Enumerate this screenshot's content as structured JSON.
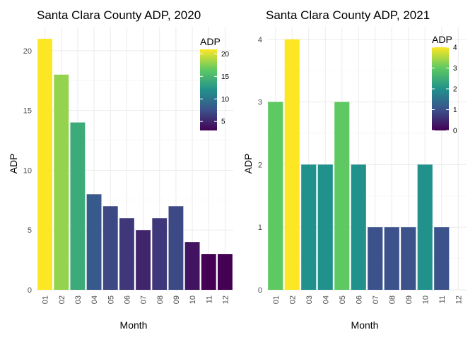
{
  "chart_data": [
    {
      "type": "bar",
      "title": "Santa Clara County ADP, 2020",
      "xlabel": "Month",
      "ylabel": "ADP",
      "categories": [
        "01",
        "02",
        "03",
        "04",
        "05",
        "06",
        "07",
        "08",
        "09",
        "10",
        "11",
        "12"
      ],
      "values": [
        21,
        18,
        14,
        8,
        7,
        6,
        5,
        6,
        7,
        4,
        3,
        3
      ],
      "ylim": [
        0,
        22
      ],
      "yticks": [
        "0",
        "5",
        "10",
        "15",
        "20"
      ],
      "legend": {
        "title": "ADP",
        "ticks": [
          "5",
          "10",
          "15",
          "20"
        ],
        "range": [
          3,
          21
        ],
        "placement": "top-right"
      },
      "colormap": "viridis",
      "grid": true
    },
    {
      "type": "bar",
      "title": "Santa Clara County ADP, 2021",
      "xlabel": "Month",
      "ylabel": "ADP",
      "categories": [
        "01",
        "02",
        "03",
        "04",
        "05",
        "06",
        "07",
        "08",
        "09",
        "10",
        "11",
        "12"
      ],
      "values": [
        3,
        4,
        2,
        2,
        3,
        2,
        1,
        1,
        1,
        2,
        1,
        0
      ],
      "ylim": [
        0,
        4.2
      ],
      "yticks": [
        "0",
        "1",
        "2",
        "3",
        "4"
      ],
      "legend": {
        "title": "ADP",
        "ticks": [
          "0",
          "1",
          "2",
          "3",
          "4"
        ],
        "range": [
          0,
          4
        ],
        "placement": "top-right"
      },
      "colormap": "viridis",
      "grid": true
    }
  ]
}
